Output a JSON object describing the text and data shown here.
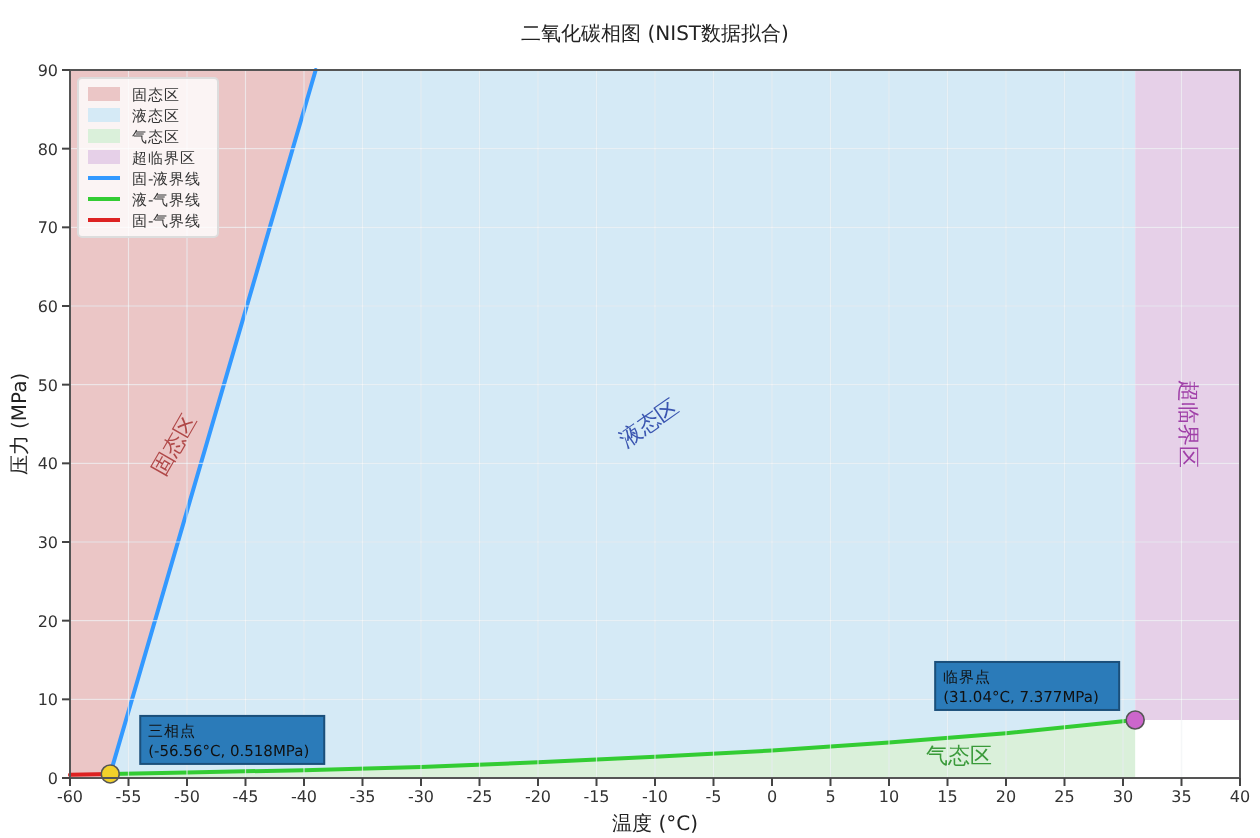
{
  "chart_data": {
    "type": "line",
    "title": "二氧化碳相图 (NIST数据拟合)",
    "xlabel": "温度 (°C)",
    "ylabel": "压力 (MPa)",
    "xlim": [
      -60,
      40
    ],
    "xticks": [
      -60,
      -55,
      -50,
      -45,
      -40,
      -35,
      -30,
      -25,
      -20,
      -15,
      -10,
      -5,
      0,
      5,
      10,
      15,
      20,
      25,
      30,
      35,
      40
    ],
    "ylim": [
      0,
      90
    ],
    "yticks": [
      0,
      10,
      20,
      30,
      40,
      50,
      60,
      70,
      80,
      90
    ],
    "grid": true,
    "legend": "top left",
    "series": [
      {
        "name": "固态区",
        "type": "area",
        "color": "#ebc6c6"
      },
      {
        "name": "液态区",
        "type": "area",
        "color": "#d5eaf6"
      },
      {
        "name": "气态区",
        "type": "area",
        "color": "#daf0da"
      },
      {
        "name": "超临界区",
        "type": "area",
        "color": "#e6d0e8"
      },
      {
        "name": "固-液界线",
        "color": "#3399ff",
        "x": [
          -56.56,
          -39
        ],
        "values": [
          0.518,
          90
        ]
      },
      {
        "name": "液-气界线",
        "color": "#33cc33",
        "x": [
          -56.56,
          -50,
          -40,
          -30,
          -20,
          -10,
          0,
          10,
          20,
          31.04
        ],
        "values": [
          0.518,
          0.7,
          1.0,
          1.4,
          2.0,
          2.7,
          3.5,
          4.5,
          5.7,
          7.377
        ]
      },
      {
        "name": "固-气界线",
        "color": "#dd2222",
        "x": [
          -60,
          -56.56
        ],
        "values": [
          0.4,
          0.518
        ]
      },
      {
        "type": "scatter",
        "color": "#f2d12a",
        "x": [
          -56.56
        ],
        "values": [
          0.518
        ]
      },
      {
        "type": "scatter",
        "color": "#cc66cc",
        "x": [
          31.04
        ],
        "values": [
          7.377
        ]
      }
    ],
    "annotations": [
      "固态区",
      "液态区",
      "气态区",
      "超临界区",
      {
        "text": "三相点\n(-56.56°C, 0.518MPa)",
        "x": -56.56,
        "y": 0.518
      },
      {
        "text": "临界点\n(31.04°C, 7.377MPa)",
        "x": 31.04,
        "y": 7.377
      }
    ]
  }
}
